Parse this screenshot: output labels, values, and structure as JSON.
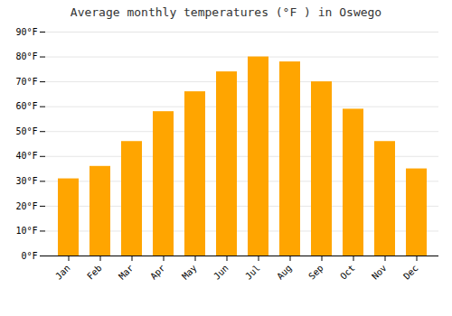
{
  "chart_data": {
    "type": "bar",
    "title": "Average monthly temperatures (°F ) in Oswego",
    "categories": [
      "Jan",
      "Feb",
      "Mar",
      "Apr",
      "May",
      "Jun",
      "Jul",
      "Aug",
      "Sep",
      "Oct",
      "Nov",
      "Dec"
    ],
    "values": [
      31,
      36,
      46,
      58,
      66,
      74,
      80,
      78,
      70,
      59,
      46,
      35
    ],
    "color": "#FFA500",
    "ylim": [
      0,
      90
    ],
    "yticks": [
      {
        "value": 0,
        "label": "0°F"
      },
      {
        "value": 10,
        "label": "10°F"
      },
      {
        "value": 20,
        "label": "20°F"
      },
      {
        "value": 30,
        "label": "30°F"
      },
      {
        "value": 40,
        "label": "40°F"
      },
      {
        "value": 50,
        "label": "50°F"
      },
      {
        "value": 60,
        "label": "60°F"
      },
      {
        "value": 70,
        "label": "70°F"
      },
      {
        "value": 80,
        "label": "80°F"
      },
      {
        "value": 90,
        "label": "90°F"
      }
    ],
    "grid": true
  }
}
